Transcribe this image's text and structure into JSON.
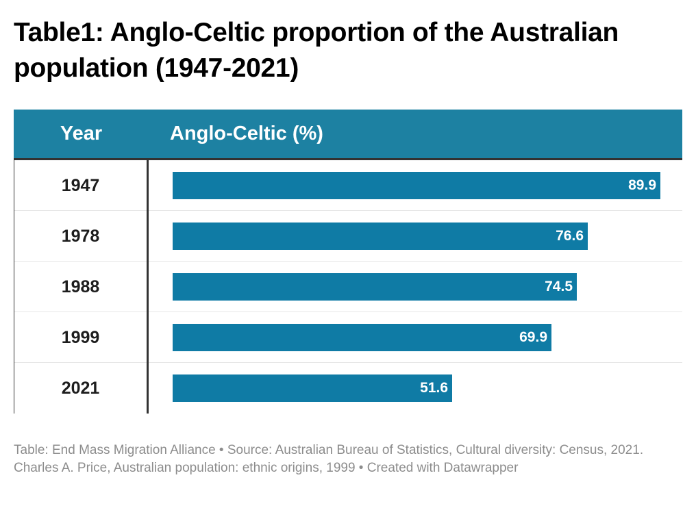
{
  "title": "Table1: Anglo-Celtic proportion of the Australian population (1947-2021)",
  "colors": {
    "header_bg": "#1d81a2",
    "bar": "#0f7ba5",
    "footer_text": "#8c8c8c"
  },
  "table": {
    "headers": {
      "year": "Year",
      "value": "Anglo-Celtic (%)"
    }
  },
  "chart_data": {
    "type": "bar",
    "orientation": "horizontal",
    "categories": [
      "1947",
      "1978",
      "1988",
      "1999",
      "2021"
    ],
    "values": [
      89.9,
      76.6,
      74.5,
      69.9,
      51.6
    ],
    "value_labels": [
      "89.9",
      "76.6",
      "74.5",
      "69.9",
      "51.6"
    ],
    "xlabel": "Anglo-Celtic (%)",
    "ylabel": "Year",
    "xlim": [
      0,
      94
    ],
    "grid": false
  },
  "footer": {
    "text": "Table: End Mass Migration Alliance  • Source: Australian Bureau of Statistics, Cultural diversity: Census, 2021. Charles A. Price, Australian population: ethnic origins, 1999 • Created with Datawrapper"
  }
}
